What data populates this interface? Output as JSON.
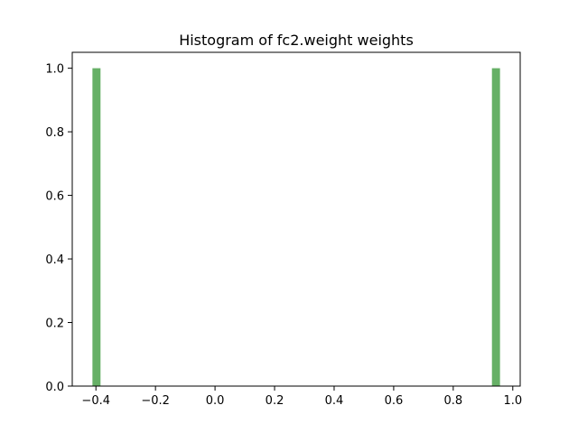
{
  "chart_data": {
    "type": "bar",
    "title": "Histogram of fc2.weight weights",
    "xlabel": "",
    "ylabel": "",
    "bars": [
      {
        "x_start": -0.4117,
        "x_end": -0.3846,
        "count": 1.0
      },
      {
        "x_start": 0.93,
        "x_end": 0.9571,
        "count": 1.0
      }
    ],
    "xlim": [
      -0.4795,
      1.0249
    ],
    "ylim": [
      0.0,
      1.05
    ],
    "xticks": [
      -0.4,
      -0.2,
      0.0,
      0.2,
      0.4,
      0.6,
      0.8,
      1.0
    ],
    "xtick_labels": [
      "−0.4",
      "−0.2",
      "0.0",
      "0.2",
      "0.4",
      "0.6",
      "0.8",
      "1.0"
    ],
    "yticks": [
      0.0,
      0.2,
      0.4,
      0.6,
      0.8,
      1.0
    ],
    "ytick_labels": [
      "0.0",
      "0.2",
      "0.4",
      "0.6",
      "0.8",
      "1.0"
    ],
    "bar_color": "#66b066",
    "grid": false,
    "legend": "none"
  }
}
